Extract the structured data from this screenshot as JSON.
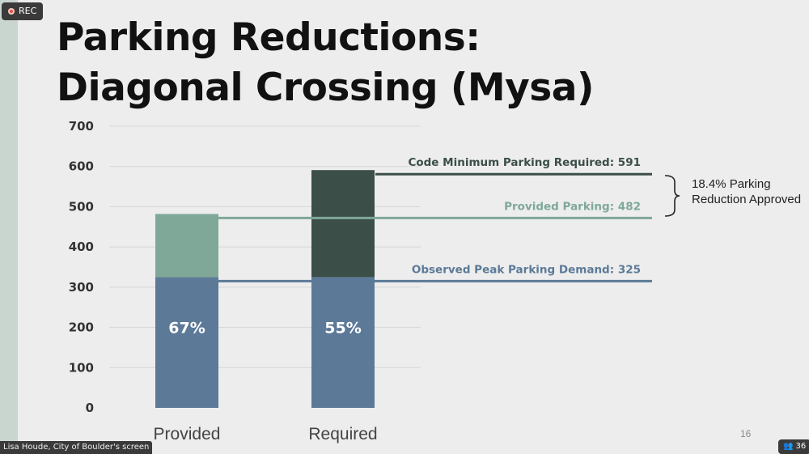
{
  "recording": {
    "label": "REC"
  },
  "slide": {
    "title_line1": "Parking Reductions:",
    "title_line2": "Diagonal Crossing (Mysa)",
    "page_number": "16",
    "bracket_text_line1": "18.4% Parking",
    "bracket_text_line2": "Reduction Approved"
  },
  "footer": {
    "screen_share_label": "Lisa Houde, City of Boulder's screen",
    "participants_count": "36",
    "participants_icon": "people-icon"
  },
  "colors": {
    "observed": "#5c7a98",
    "provided": "#7fa898",
    "required": "#3b4f48",
    "code_line": "#3b4f48",
    "provided_line": "#7fa898",
    "observed_line": "#5c7a98",
    "grid": "#d6d6d6"
  },
  "chart_data": {
    "type": "bar",
    "stacked": true,
    "categories": [
      "Provided",
      "Required"
    ],
    "ylim": [
      0,
      700
    ],
    "yticks": [
      0,
      100,
      200,
      300,
      400,
      500,
      600,
      700
    ],
    "grid": true,
    "series": [
      {
        "values": [
          325,
          325
        ],
        "color_key": "observed"
      },
      {
        "values": [
          157,
          0
        ],
        "color_key": "provided"
      },
      {
        "values": [
          0,
          266
        ],
        "color_key": "required"
      }
    ],
    "bar_labels": [
      "67%",
      "55%"
    ],
    "reference_lines": [
      {
        "label": "Code Minimum Parking Required: 591",
        "value": 591,
        "color_key": "code_line"
      },
      {
        "label": "Provided Parking: 482",
        "value": 482,
        "color_key": "provided_line"
      },
      {
        "label": "Observed Peak Parking Demand: 325",
        "value": 325,
        "color_key": "observed_line"
      }
    ],
    "xlabel": "",
    "ylabel": ""
  }
}
